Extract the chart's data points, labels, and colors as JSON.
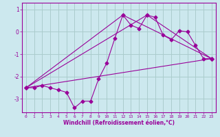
{
  "xlabel": "Windchill (Refroidissement éolien,°C)",
  "bg_color": "#cce8ee",
  "grid_color": "#aacccc",
  "line_color": "#990099",
  "xlim": [
    -0.5,
    23.5
  ],
  "ylim": [
    -3.6,
    1.3
  ],
  "yticks": [
    1,
    0,
    -1,
    -2,
    -3
  ],
  "xticks": [
    0,
    1,
    2,
    3,
    4,
    5,
    6,
    7,
    8,
    9,
    10,
    11,
    12,
    13,
    14,
    15,
    16,
    17,
    18,
    19,
    20,
    21,
    22,
    23
  ],
  "series1_x": [
    0,
    1,
    2,
    3,
    4,
    5,
    6,
    7,
    8,
    9,
    10,
    11,
    12,
    13,
    14,
    15,
    16,
    17,
    18,
    19,
    20,
    21,
    22,
    23
  ],
  "series1_y": [
    -2.5,
    -2.5,
    -2.4,
    -2.5,
    -2.6,
    -2.7,
    -3.4,
    -3.1,
    -3.1,
    -2.1,
    -1.4,
    -0.3,
    0.75,
    0.3,
    0.15,
    0.75,
    0.65,
    -0.15,
    -0.35,
    0.05,
    0.0,
    -0.6,
    -1.2,
    -1.2
  ],
  "series2_x": [
    0,
    23
  ],
  "series2_y": [
    -2.5,
    -1.2
  ],
  "series3_x": [
    0,
    12,
    23
  ],
  "series3_y": [
    -2.5,
    0.75,
    -1.2
  ],
  "series4_x": [
    0,
    15,
    23
  ],
  "series4_y": [
    -2.5,
    0.75,
    -1.2
  ]
}
